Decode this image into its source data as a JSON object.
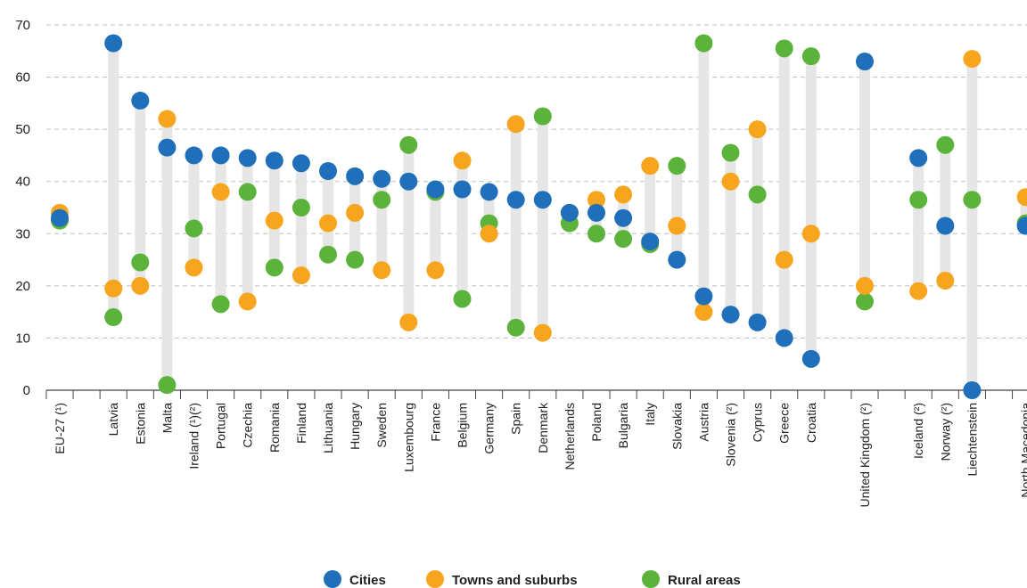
{
  "colors": {
    "cities": "#1f6fba",
    "towns": "#f7a51e",
    "rural": "#5cb33b",
    "range_bar": "#e6e6e6",
    "grid": "#bdbdbd"
  },
  "chart_data": {
    "type": "scatter",
    "title": "",
    "xlabel": "",
    "ylabel": "",
    "ylim": [
      0,
      70
    ],
    "yticks": [
      0,
      10,
      20,
      30,
      40,
      50,
      60,
      70
    ],
    "grid": true,
    "legend_position": "bottom-center",
    "slots": [
      {
        "label": "EU-27 (¹)",
        "cities": 33,
        "towns": 34,
        "rural": 32.5
      },
      {
        "label": "",
        "cities": null,
        "towns": null,
        "rural": null
      },
      {
        "label": "Latvia",
        "cities": 66.5,
        "towns": 19.5,
        "rural": 14
      },
      {
        "label": "Estonia",
        "cities": 55.5,
        "towns": 20,
        "rural": 24.5
      },
      {
        "label": "Malta",
        "cities": 46.5,
        "towns": 52,
        "rural": 1
      },
      {
        "label": "Ireland (¹)(²)",
        "cities": 45,
        "towns": 23.5,
        "rural": 31
      },
      {
        "label": "Portugal",
        "cities": 45,
        "towns": 38,
        "rural": 16.5
      },
      {
        "label": "Czechia",
        "cities": 44.5,
        "towns": 17,
        "rural": 38
      },
      {
        "label": "Romania",
        "cities": 44,
        "towns": 32.5,
        "rural": 23.5
      },
      {
        "label": "Finland",
        "cities": 43.5,
        "towns": 22,
        "rural": 35
      },
      {
        "label": "Lithuania",
        "cities": 42,
        "towns": 32,
        "rural": 26
      },
      {
        "label": "Hungary",
        "cities": 41,
        "towns": 34,
        "rural": 25
      },
      {
        "label": "Sweden",
        "cities": 40.5,
        "towns": 23,
        "rural": 36.5
      },
      {
        "label": "Luxembourg",
        "cities": 40,
        "towns": 13,
        "rural": 47
      },
      {
        "label": "France",
        "cities": 38.5,
        "towns": 23,
        "rural": 38
      },
      {
        "label": "Belgium",
        "cities": 38.5,
        "towns": 44,
        "rural": 17.5
      },
      {
        "label": "Germany",
        "cities": 38,
        "towns": 30,
        "rural": 32
      },
      {
        "label": "Spain",
        "cities": 36.5,
        "towns": 51,
        "rural": 12
      },
      {
        "label": "Denmark",
        "cities": 36.5,
        "towns": 11,
        "rural": 52.5
      },
      {
        "label": "Netherlands",
        "cities": 34,
        "towns": 34,
        "rural": 32
      },
      {
        "label": "Poland",
        "cities": 34,
        "towns": 36.5,
        "rural": 30
      },
      {
        "label": "Bulgaria",
        "cities": 33,
        "towns": 37.5,
        "rural": 29
      },
      {
        "label": "Italy",
        "cities": 28.5,
        "towns": 43,
        "rural": 28
      },
      {
        "label": "Slovakia",
        "cities": 25,
        "towns": 31.5,
        "rural": 43
      },
      {
        "label": "Austria",
        "cities": 18,
        "towns": 15,
        "rural": 66.5
      },
      {
        "label": "Slovenia (²)",
        "cities": 14.5,
        "towns": 40,
        "rural": 45.5
      },
      {
        "label": "Cyprus",
        "cities": 13,
        "towns": 50,
        "rural": 37.5
      },
      {
        "label": "Greece",
        "cities": 10,
        "towns": 25,
        "rural": 65.5
      },
      {
        "label": "Croatia",
        "cities": 6,
        "towns": 30,
        "rural": 64
      },
      {
        "label": "",
        "cities": null,
        "towns": null,
        "rural": null
      },
      {
        "label": "United Kingdom (²)",
        "cities": 63,
        "towns": 20,
        "rural": 17
      },
      {
        "label": "",
        "cities": null,
        "towns": null,
        "rural": null
      },
      {
        "label": "Iceland (²)",
        "cities": 44.5,
        "towns": 19,
        "rural": 36.5
      },
      {
        "label": "Norway (²)",
        "cities": 31.5,
        "towns": 21,
        "rural": 47
      },
      {
        "label": "Liechtenstein",
        "cities": 0,
        "towns": 63.5,
        "rural": 36.5
      },
      {
        "label": "",
        "cities": null,
        "towns": null,
        "rural": null
      },
      {
        "label": "North Macedonia",
        "cities": 31.5,
        "towns": 37,
        "rural": 32
      }
    ],
    "series": [
      {
        "key": "cities",
        "name": "Cities"
      },
      {
        "key": "towns",
        "name": "Towns and suburbs"
      },
      {
        "key": "rural",
        "name": "Rural areas"
      }
    ]
  }
}
